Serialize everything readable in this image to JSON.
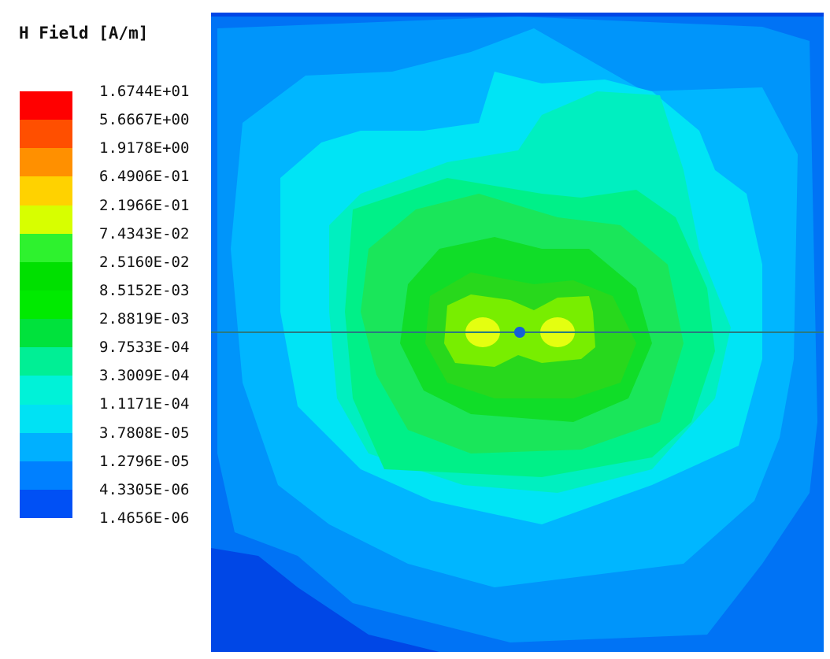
{
  "chart_data": {
    "type": "heatmap",
    "title": "H Field [A/m]",
    "colorbar": {
      "levels": [
        {
          "label": "1.6744E+01",
          "value": 16.744,
          "color": "#ff0000"
        },
        {
          "label": "5.6667E+00",
          "value": 5.6667,
          "color": "#ff4f00"
        },
        {
          "label": "1.9178E+00",
          "value": 1.9178,
          "color": "#ff9000"
        },
        {
          "label": "6.4906E-01",
          "value": 0.64906,
          "color": "#ffd200"
        },
        {
          "label": "2.1966E-01",
          "value": 0.21966,
          "color": "#d7ff00"
        },
        {
          "label": "7.4343E-02",
          "value": 0.074343,
          "color": "#2ef22e"
        },
        {
          "label": "2.5160E-02",
          "value": 0.02516,
          "color": "#00e000"
        },
        {
          "label": "8.5152E-03",
          "value": 0.0085152,
          "color": "#00ea00"
        },
        {
          "label": "2.8819E-03",
          "value": 0.0028819,
          "color": "#00e23c"
        },
        {
          "label": "9.7533E-04",
          "value": 0.00097533,
          "color": "#00ef95"
        },
        {
          "label": "3.3009E-04",
          "value": 0.00033009,
          "color": "#00f2d8"
        },
        {
          "label": "1.1171E-04",
          "value": 0.00011171,
          "color": "#00e2f4"
        },
        {
          "label": "3.7808E-05",
          "value": 3.7808e-05,
          "color": "#00b0ff"
        },
        {
          "label": "1.2796E-05",
          "value": 1.2796e-05,
          "color": "#0080ff"
        },
        {
          "label": "4.3305E-06",
          "value": 4.3305e-06,
          "color": "#0050f5"
        },
        {
          "label": "1.4656E-06",
          "value": 1.4656e-06,
          "color": "#0010ef"
        }
      ],
      "scale": "log"
    },
    "field_sources": 2,
    "grid": false
  }
}
